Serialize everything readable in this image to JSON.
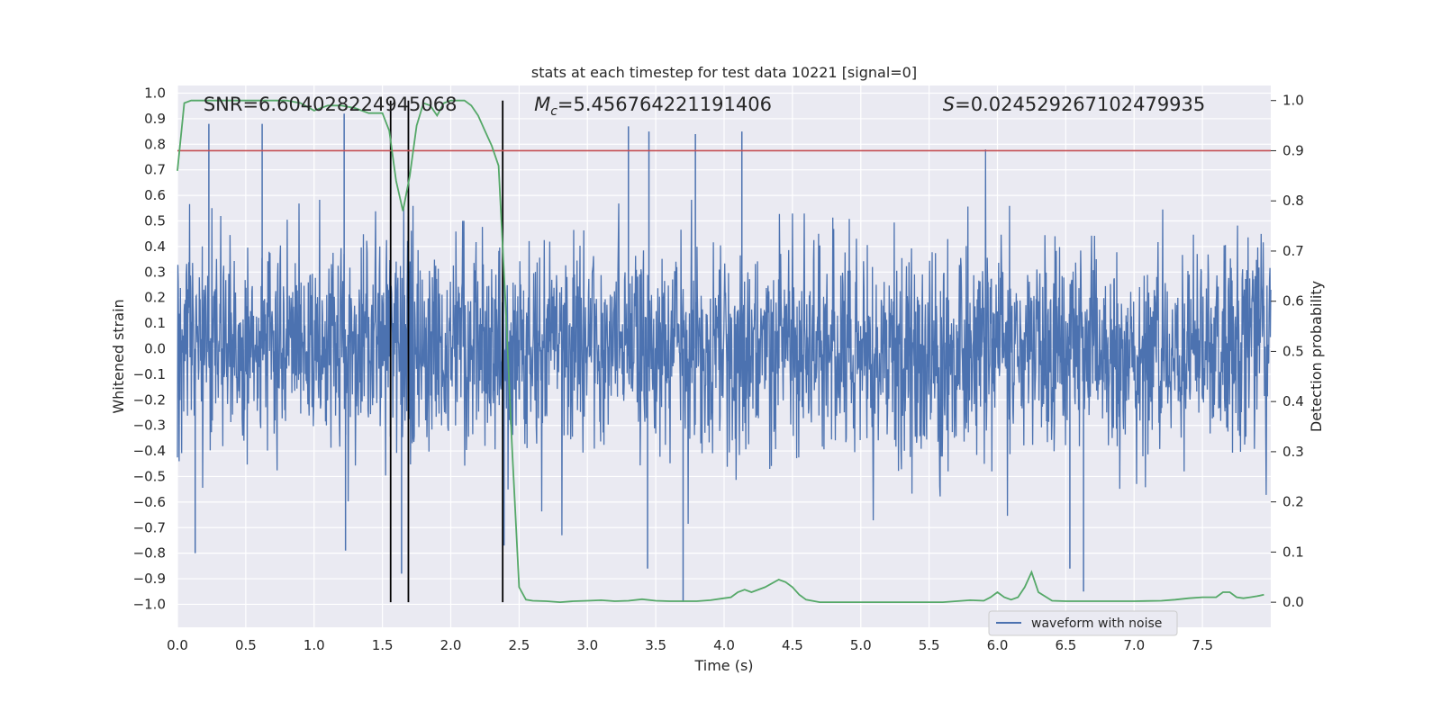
{
  "chart_data": {
    "type": "line",
    "title": "stats at each timestep for test data 10221 [signal=0]",
    "xlabel": "Time (s)",
    "ylabel": "Whitened strain",
    "ylabel_right": "Detection probability",
    "xlim": [
      0.0,
      8.0
    ],
    "ylim_left": [
      -1.09,
      1.03
    ],
    "ylim_right": [
      -0.05,
      1.03
    ],
    "xticks": [
      "0.0",
      "0.5",
      "1.0",
      "1.5",
      "2.0",
      "2.5",
      "3.0",
      "3.5",
      "4.0",
      "4.5",
      "5.0",
      "5.5",
      "6.0",
      "6.5",
      "7.0",
      "7.5"
    ],
    "yticks_left": [
      "1.0",
      "0.9",
      "0.8",
      "0.7",
      "0.6",
      "0.5",
      "0.4",
      "0.3",
      "0.2",
      "0.1",
      "0.0",
      "−0.1",
      "−0.2",
      "−0.3",
      "−0.4",
      "−0.5",
      "−0.6",
      "−0.7",
      "−0.8",
      "−0.9",
      "−1.0"
    ],
    "yticks_right": [
      "1.0",
      "0.9",
      "0.8",
      "0.7",
      "0.6",
      "0.5",
      "0.4",
      "0.3",
      "0.2",
      "0.1",
      "0.0"
    ],
    "annotations": {
      "snr": "SNR=6.604028224945068",
      "mc_symbol": "M",
      "mc_sub": "c",
      "mc_value": "=5.456764221191406",
      "s_symbol": "S",
      "s_value": "=0.024529267102479935"
    },
    "legend": {
      "label": "waveform with noise",
      "location": "lower-right"
    },
    "threshold_prob": 0.9,
    "vertical_lines_s": [
      1.56,
      1.69,
      2.38
    ],
    "waveform": {
      "name": "waveform with noise",
      "description_range": [
        -1.0,
        0.93
      ],
      "peak_spikes": [
        {
          "t": 0.23,
          "v": 0.88
        },
        {
          "t": 0.62,
          "v": 0.88
        },
        {
          "t": 1.22,
          "v": 0.92
        },
        {
          "t": 3.3,
          "v": 0.87
        },
        {
          "t": 3.45,
          "v": 0.85
        },
        {
          "t": 3.79,
          "v": 0.84
        },
        {
          "t": 4.13,
          "v": 0.85
        },
        {
          "t": 0.13,
          "v": -0.8
        },
        {
          "t": 1.23,
          "v": -0.79
        },
        {
          "t": 1.64,
          "v": -0.88
        },
        {
          "t": 3.44,
          "v": -0.86
        },
        {
          "t": 3.7,
          "v": -0.99
        },
        {
          "t": 6.63,
          "v": -0.95
        },
        {
          "t": 6.53,
          "v": -0.86
        },
        {
          "t": 2.39,
          "v": -0.77
        }
      ]
    },
    "probability": {
      "name": "Detection probability",
      "x": [
        0.0,
        0.05,
        0.1,
        0.2,
        0.3,
        0.5,
        0.7,
        0.8,
        0.9,
        1.0,
        1.1,
        1.2,
        1.3,
        1.4,
        1.5,
        1.55,
        1.6,
        1.65,
        1.7,
        1.75,
        1.8,
        1.85,
        1.9,
        1.95,
        2.0,
        2.05,
        2.1,
        2.15,
        2.2,
        2.25,
        2.3,
        2.35,
        2.4,
        2.45,
        2.5,
        2.55,
        2.6,
        2.7,
        2.8,
        2.9,
        3.0,
        3.1,
        3.2,
        3.3,
        3.4,
        3.5,
        3.6,
        3.7,
        3.8,
        3.9,
        4.0,
        4.05,
        4.1,
        4.15,
        4.2,
        4.3,
        4.4,
        4.45,
        4.5,
        4.55,
        4.6,
        4.7,
        4.8,
        4.9,
        5.0,
        5.2,
        5.4,
        5.6,
        5.7,
        5.8,
        5.9,
        5.95,
        6.0,
        6.05,
        6.1,
        6.15,
        6.2,
        6.25,
        6.3,
        6.4,
        6.5,
        6.7,
        6.9,
        7.0,
        7.2,
        7.3,
        7.4,
        7.5,
        7.6,
        7.65,
        7.7,
        7.75,
        7.8,
        7.85,
        7.9,
        7.95
      ],
      "y": [
        0.86,
        0.995,
        1.0,
        1.0,
        1.0,
        1.0,
        1.0,
        1.0,
        0.995,
        0.98,
        0.99,
        0.99,
        0.985,
        0.975,
        0.975,
        0.94,
        0.84,
        0.78,
        0.85,
        0.95,
        0.995,
        0.99,
        0.97,
        0.995,
        1.0,
        1.0,
        1.0,
        0.99,
        0.97,
        0.94,
        0.91,
        0.87,
        0.6,
        0.3,
        0.03,
        0.005,
        0.003,
        0.002,
        0.0,
        0.002,
        0.003,
        0.004,
        0.002,
        0.003,
        0.006,
        0.003,
        0.002,
        0.002,
        0.002,
        0.004,
        0.008,
        0.01,
        0.02,
        0.025,
        0.02,
        0.03,
        0.045,
        0.04,
        0.03,
        0.015,
        0.005,
        0.0,
        0.0,
        0.0,
        0.0,
        0.0,
        0.0,
        0.0,
        0.002,
        0.004,
        0.003,
        0.01,
        0.02,
        0.01,
        0.005,
        0.01,
        0.03,
        0.06,
        0.02,
        0.003,
        0.002,
        0.002,
        0.002,
        0.002,
        0.003,
        0.005,
        0.008,
        0.01,
        0.01,
        0.02,
        0.02,
        0.01,
        0.008,
        0.01,
        0.012,
        0.015
      ]
    },
    "colors": {
      "background": "#eaeaf2",
      "grid": "#ffffff",
      "waveform": "#4c72b0",
      "probability": "#55a868",
      "threshold": "#c44e52",
      "vline": "#000000",
      "text": "#262626"
    },
    "grid": true
  }
}
